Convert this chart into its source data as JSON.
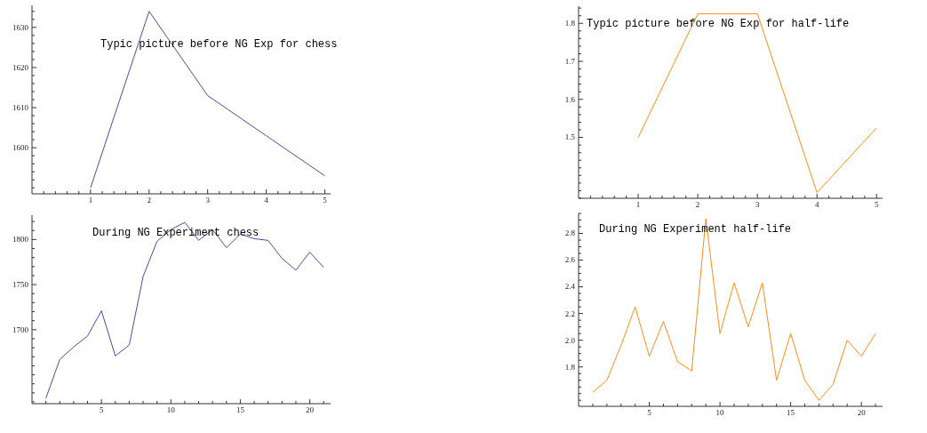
{
  "chart_data": [
    {
      "type": "line",
      "title": "Typic picture before NG Exp for chess",
      "x": [
        1,
        2,
        3,
        4,
        5
      ],
      "values": [
        1590,
        1634,
        1613,
        1603,
        1593
      ],
      "color": "#4a4a9e",
      "xlim": [
        0,
        5.1
      ],
      "ylim": [
        1588.5,
        1635.5
      ],
      "xticks": [
        {
          "value": 0.2,
          "label": null
        },
        {
          "value": 0.4,
          "label": null
        },
        {
          "value": 0.6,
          "label": null
        },
        {
          "value": 0.8,
          "label": null
        },
        1,
        {
          "value": 1.2,
          "label": null
        },
        {
          "value": 1.4,
          "label": null
        },
        {
          "value": 1.6,
          "label": null
        },
        {
          "value": 1.8,
          "label": null
        },
        2,
        {
          "value": 2.2,
          "label": null
        },
        {
          "value": 2.4,
          "label": null
        },
        {
          "value": 2.6,
          "label": null
        },
        {
          "value": 2.8,
          "label": null
        },
        3,
        {
          "value": 3.2,
          "label": null
        },
        {
          "value": 3.4,
          "label": null
        },
        {
          "value": 3.6,
          "label": null
        },
        {
          "value": 3.8,
          "label": null
        },
        4,
        {
          "value": 4.2,
          "label": null
        },
        {
          "value": 4.4,
          "label": null
        },
        {
          "value": 4.6,
          "label": null
        },
        {
          "value": 4.8,
          "label": null
        },
        5
      ],
      "yticks": [
        {
          "value": 1590,
          "label": null
        },
        {
          "value": 1592,
          "label": null
        },
        {
          "value": 1594,
          "label": null
        },
        {
          "value": 1596,
          "label": null
        },
        {
          "value": 1598,
          "label": null
        },
        1600,
        {
          "value": 1602,
          "label": null
        },
        {
          "value": 1604,
          "label": null
        },
        {
          "value": 1606,
          "label": null
        },
        {
          "value": 1608,
          "label": null
        },
        1610,
        {
          "value": 1612,
          "label": null
        },
        {
          "value": 1614,
          "label": null
        },
        {
          "value": 1616,
          "label": null
        },
        {
          "value": 1618,
          "label": null
        },
        1620,
        {
          "value": 1622,
          "label": null
        },
        {
          "value": 1624,
          "label": null
        },
        {
          "value": 1626,
          "label": null
        },
        {
          "value": 1628,
          "label": null
        },
        1630,
        {
          "value": 1632,
          "label": null
        },
        {
          "value": 1634,
          "label": null
        }
      ]
    },
    {
      "type": "line",
      "title": "Typic picture before NG Exp for half-life",
      "x": [
        1,
        2,
        3,
        4,
        5
      ],
      "values": [
        1.5,
        1.825,
        1.825,
        1.355,
        1.525
      ],
      "color": "#ff8c1a",
      "xlim": [
        0,
        5.1
      ],
      "ylim": [
        1.34,
        1.845
      ],
      "xticks": [
        {
          "value": 0.2,
          "label": null
        },
        {
          "value": 0.4,
          "label": null
        },
        {
          "value": 0.6,
          "label": null
        },
        {
          "value": 0.8,
          "label": null
        },
        1,
        {
          "value": 1.2,
          "label": null
        },
        {
          "value": 1.4,
          "label": null
        },
        {
          "value": 1.6,
          "label": null
        },
        {
          "value": 1.8,
          "label": null
        },
        2,
        {
          "value": 2.2,
          "label": null
        },
        {
          "value": 2.4,
          "label": null
        },
        {
          "value": 2.6,
          "label": null
        },
        {
          "value": 2.8,
          "label": null
        },
        3,
        {
          "value": 3.2,
          "label": null
        },
        {
          "value": 3.4,
          "label": null
        },
        {
          "value": 3.6,
          "label": null
        },
        {
          "value": 3.8,
          "label": null
        },
        4,
        {
          "value": 4.2,
          "label": null
        },
        {
          "value": 4.4,
          "label": null
        },
        {
          "value": 4.6,
          "label": null
        },
        {
          "value": 4.8,
          "label": null
        },
        5
      ],
      "yticks": [
        {
          "value": 1.34,
          "label": null
        },
        {
          "value": 1.36,
          "label": null
        },
        {
          "value": 1.38,
          "label": null
        },
        {
          "value": 1.4,
          "label": null
        },
        {
          "value": 1.42,
          "label": null
        },
        {
          "value": 1.44,
          "label": null
        },
        {
          "value": 1.46,
          "label": null
        },
        {
          "value": 1.48,
          "label": null
        },
        1.5,
        {
          "value": 1.52,
          "label": null
        },
        {
          "value": 1.54,
          "label": null
        },
        {
          "value": 1.56,
          "label": null
        },
        {
          "value": 1.58,
          "label": null
        },
        1.6,
        {
          "value": 1.62,
          "label": null
        },
        {
          "value": 1.64,
          "label": null
        },
        {
          "value": 1.66,
          "label": null
        },
        {
          "value": 1.68,
          "label": null
        },
        1.7,
        {
          "value": 1.72,
          "label": null
        },
        {
          "value": 1.74,
          "label": null
        },
        {
          "value": 1.76,
          "label": null
        },
        {
          "value": 1.78,
          "label": null
        },
        1.8,
        {
          "value": 1.82,
          "label": null
        },
        {
          "value": 1.84,
          "label": null
        }
      ]
    },
    {
      "type": "line",
      "title": "During NG Experiment chess",
      "x": [
        1,
        2,
        3,
        4,
        5,
        6,
        7,
        8,
        9,
        10,
        11,
        12,
        13,
        14,
        15,
        16,
        17,
        18,
        19,
        20,
        21
      ],
      "values": [
        1624,
        1667,
        1681,
        1693,
        1721,
        1671,
        1683,
        1759,
        1798,
        1811,
        1819,
        1799,
        1811,
        1791,
        1806,
        1801,
        1799,
        1779,
        1766,
        1786,
        1769
      ],
      "color": "#4a4a9e",
      "xlim": [
        0,
        21.5
      ],
      "ylim": [
        1618,
        1827
      ],
      "xticks": [
        {
          "value": 1,
          "label": null
        },
        {
          "value": 2,
          "label": null
        },
        {
          "value": 3,
          "label": null
        },
        {
          "value": 4,
          "label": null
        },
        5,
        {
          "value": 6,
          "label": null
        },
        {
          "value": 7,
          "label": null
        },
        {
          "value": 8,
          "label": null
        },
        {
          "value": 9,
          "label": null
        },
        10,
        {
          "value": 11,
          "label": null
        },
        {
          "value": 12,
          "label": null
        },
        {
          "value": 13,
          "label": null
        },
        {
          "value": 14,
          "label": null
        },
        15,
        {
          "value": 16,
          "label": null
        },
        {
          "value": 17,
          "label": null
        },
        {
          "value": 18,
          "label": null
        },
        {
          "value": 19,
          "label": null
        },
        20,
        {
          "value": 21,
          "label": null
        }
      ],
      "yticks": [
        {
          "value": 1620,
          "label": null
        },
        {
          "value": 1630,
          "label": null
        },
        {
          "value": 1640,
          "label": null
        },
        {
          "value": 1650,
          "label": null
        },
        {
          "value": 1660,
          "label": null
        },
        {
          "value": 1670,
          "label": null
        },
        {
          "value": 1680,
          "label": null
        },
        {
          "value": 1690,
          "label": null
        },
        1700,
        {
          "value": 1710,
          "label": null
        },
        {
          "value": 1720,
          "label": null
        },
        {
          "value": 1730,
          "label": null
        },
        {
          "value": 1740,
          "label": null
        },
        1750,
        {
          "value": 1760,
          "label": null
        },
        {
          "value": 1770,
          "label": null
        },
        {
          "value": 1780,
          "label": null
        },
        {
          "value": 1790,
          "label": null
        },
        1800,
        {
          "value": 1810,
          "label": null
        },
        {
          "value": 1820,
          "label": null
        }
      ]
    },
    {
      "type": "line",
      "title": "During NG Experiment half-life",
      "x": [
        1,
        2,
        3,
        4,
        5,
        6,
        7,
        8,
        9,
        10,
        11,
        12,
        13,
        14,
        15,
        16,
        17,
        18,
        19,
        20,
        21
      ],
      "values": [
        1.61,
        1.7,
        1.96,
        2.25,
        1.88,
        2.14,
        1.84,
        1.77,
        2.91,
        2.05,
        2.43,
        2.1,
        2.43,
        1.7,
        2.05,
        1.7,
        1.55,
        1.67,
        2,
        1.88,
        2.05
      ],
      "color": "#ff8c1a",
      "xlim": [
        0,
        21.5
      ],
      "ylim": [
        1.505,
        2.95
      ],
      "xticks": [
        {
          "value": 1,
          "label": null
        },
        {
          "value": 2,
          "label": null
        },
        {
          "value": 3,
          "label": null
        },
        {
          "value": 4,
          "label": null
        },
        5,
        {
          "value": 6,
          "label": null
        },
        {
          "value": 7,
          "label": null
        },
        {
          "value": 8,
          "label": null
        },
        {
          "value": 9,
          "label": null
        },
        10,
        {
          "value": 11,
          "label": null
        },
        {
          "value": 12,
          "label": null
        },
        {
          "value": 13,
          "label": null
        },
        {
          "value": 14,
          "label": null
        },
        15,
        {
          "value": 16,
          "label": null
        },
        {
          "value": 17,
          "label": null
        },
        {
          "value": 18,
          "label": null
        },
        {
          "value": 19,
          "label": null
        },
        20,
        {
          "value": 21,
          "label": null
        }
      ],
      "yticks": [
        {
          "value": 1.55,
          "label": null
        },
        {
          "value": 1.6,
          "label": null
        },
        {
          "value": 1.65,
          "label": null
        },
        {
          "value": 1.7,
          "label": null
        },
        {
          "value": 1.75,
          "label": null
        },
        1.8,
        {
          "value": 1.85,
          "label": null
        },
        {
          "value": 1.9,
          "label": null
        },
        {
          "value": 1.95,
          "label": null
        },
        {
          "value": 2,
          "label": "2.0"
        },
        {
          "value": 2.05,
          "label": null
        },
        {
          "value": 2.1,
          "label": null
        },
        {
          "value": 2.15,
          "label": null
        },
        2.2,
        {
          "value": 2.25,
          "label": null
        },
        {
          "value": 2.3,
          "label": null
        },
        {
          "value": 2.35,
          "label": null
        },
        2.4,
        {
          "value": 2.45,
          "label": null
        },
        {
          "value": 2.5,
          "label": null
        },
        {
          "value": 2.55,
          "label": null
        },
        2.6,
        {
          "value": 2.65,
          "label": null
        },
        {
          "value": 2.7,
          "label": null
        },
        {
          "value": 2.75,
          "label": null
        },
        2.8,
        {
          "value": 2.85,
          "label": null
        },
        {
          "value": 2.9,
          "label": null
        },
        {
          "value": 2.95,
          "label": null
        }
      ]
    }
  ]
}
